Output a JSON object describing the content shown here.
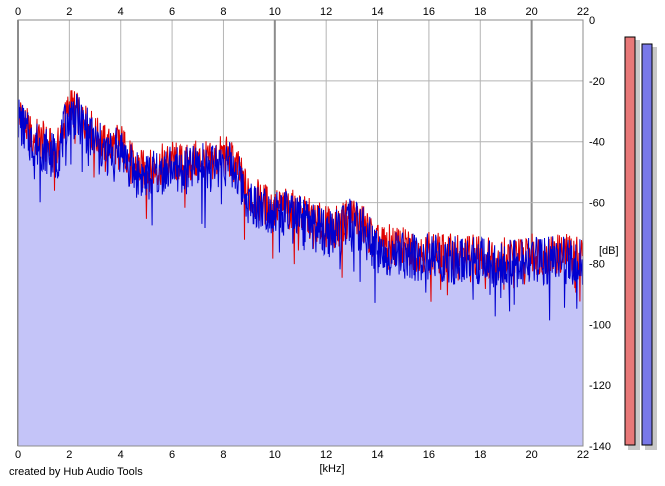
{
  "credit": "created by Hub Audio Tools",
  "colors": {
    "fill": "#c4c4f8",
    "grid": "#b4b4b4",
    "major_grid": "#8c8c8c",
    "left_channel": "#e00000",
    "right_channel": "#0000d0",
    "left_meter": "#e87878",
    "right_meter": "#7878e8"
  },
  "chart_data": {
    "type": "line",
    "xlabel": "[kHz]",
    "ylabel": "[dB]",
    "xlim": [
      0,
      22
    ],
    "ylim": [
      -140,
      0
    ],
    "x_ticks": [
      "0",
      "2",
      "4",
      "6",
      "8",
      "10",
      "12",
      "14",
      "16",
      "18",
      "20",
      "22"
    ],
    "y_ticks": [
      "0",
      "-20",
      "-40",
      "-60",
      "-80",
      "-100",
      "-120",
      "-140"
    ],
    "grid": true,
    "fill_under": true,
    "series": [
      {
        "channel": "left",
        "color": "#e00000",
        "x": [
          0,
          0.5,
          1,
          1.5,
          2,
          2.5,
          3,
          3.5,
          4,
          4.5,
          5,
          5.5,
          6,
          6.5,
          7,
          7.5,
          8,
          8.5,
          9,
          9.5,
          10,
          10.5,
          11,
          11.5,
          12,
          12.5,
          13,
          13.5,
          14,
          14.5,
          15,
          15.5,
          16,
          16.5,
          17,
          17.5,
          18,
          18.5,
          19,
          19.5,
          20,
          20.5,
          21,
          21.5,
          22
        ],
        "values": [
          -30,
          -38,
          -40,
          -44,
          -28,
          -32,
          -38,
          -42,
          -40,
          -48,
          -50,
          -48,
          -46,
          -48,
          -46,
          -47,
          -44,
          -48,
          -58,
          -60,
          -62,
          -62,
          -64,
          -66,
          -68,
          -68,
          -64,
          -68,
          -74,
          -74,
          -75,
          -76,
          -76,
          -77,
          -77,
          -77,
          -77,
          -78,
          -78,
          -78,
          -77,
          -77,
          -77,
          -77,
          -77
        ]
      },
      {
        "channel": "right",
        "color": "#0000d0",
        "x": [
          0,
          0.5,
          1,
          1.5,
          2,
          2.5,
          3,
          3.5,
          4,
          4.5,
          5,
          5.5,
          6,
          6.5,
          7,
          7.5,
          8,
          8.5,
          9,
          9.5,
          10,
          10.5,
          11,
          11.5,
          12,
          12.5,
          13,
          13.5,
          14,
          14.5,
          15,
          15.5,
          16,
          16.5,
          17,
          17.5,
          18,
          18.5,
          19,
          19.5,
          20,
          20.5,
          21,
          21.5,
          22
        ],
        "values": [
          -32,
          -40,
          -42,
          -46,
          -30,
          -34,
          -40,
          -44,
          -42,
          -50,
          -52,
          -50,
          -48,
          -50,
          -48,
          -49,
          -46,
          -50,
          -60,
          -61,
          -63,
          -64,
          -66,
          -68,
          -70,
          -70,
          -66,
          -70,
          -76,
          -76,
          -77,
          -78,
          -78,
          -79,
          -79,
          -79,
          -79,
          -80,
          -80,
          -80,
          -79,
          -79,
          -79,
          -79,
          -79
        ]
      }
    ],
    "meters": {
      "left_level_db": -6,
      "right_level_db": -8
    }
  }
}
